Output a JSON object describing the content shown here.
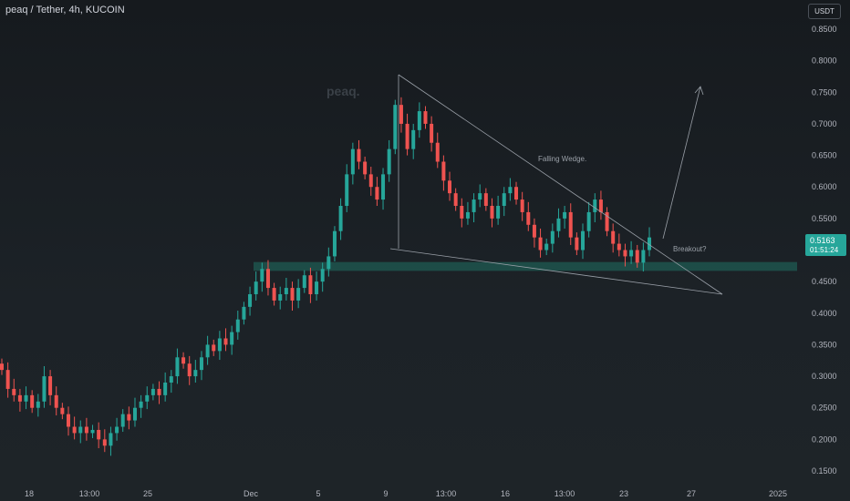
{
  "header": {
    "title": "peaq / Tether, 4h, KUCOIN",
    "unit_badge": "USDT"
  },
  "watermark": "peaq.",
  "annotations": {
    "pattern_label": "Falling Wedge.",
    "breakout_label": "Breakout?"
  },
  "price_tag": {
    "price": "0.5163",
    "countdown": "01:51:24",
    "color": "#26a69a"
  },
  "colors": {
    "up": "#26a69a",
    "down": "#ef5350",
    "zone": "#1f5b53",
    "lines": "#9aa0a8"
  },
  "chart_data": {
    "type": "candlestick",
    "y_axis": {
      "ticks": [
        "0.8500",
        "0.8000",
        "0.7500",
        "0.7000",
        "0.6500",
        "0.6000",
        "0.5500",
        "0.4500",
        "0.4000",
        "0.3500",
        "0.3000",
        "0.2500",
        "0.2000",
        "0.1500"
      ],
      "range": [
        0.13,
        0.86
      ]
    },
    "x_axis": {
      "ticks": [
        "18",
        "13:00",
        "25",
        "Dec",
        "5",
        "9",
        "13:00",
        "16",
        "13:00",
        "23",
        "27",
        "2025"
      ]
    },
    "support_zone": [
      0.467,
      0.481
    ],
    "wedge": {
      "upper": [
        [
          "2024-12-09",
          0.78
        ],
        [
          "2024-12-28",
          0.43
        ]
      ],
      "lower": [
        [
          "2024-12-09",
          0.51
        ],
        [
          "2024-12-28",
          0.43
        ]
      ]
    },
    "projection": [
      [
        "2024-12-24",
        0.52
      ],
      [
        "2024-12-25",
        0.76
      ]
    ],
    "price_path": [
      [
        0.32,
        0.31
      ],
      [
        0.31,
        0.28
      ],
      [
        0.28,
        0.27
      ],
      [
        0.27,
        0.26
      ],
      [
        0.26,
        0.27
      ],
      [
        0.27,
        0.25
      ],
      [
        0.25,
        0.26
      ],
      [
        0.26,
        0.3
      ],
      [
        0.3,
        0.27
      ],
      [
        0.27,
        0.25
      ],
      [
        0.25,
        0.24
      ],
      [
        0.24,
        0.22
      ],
      [
        0.22,
        0.21
      ],
      [
        0.21,
        0.22
      ],
      [
        0.22,
        0.21
      ],
      [
        0.21,
        0.215
      ],
      [
        0.215,
        0.2
      ],
      [
        0.2,
        0.19
      ],
      [
        0.19,
        0.21
      ],
      [
        0.21,
        0.22
      ],
      [
        0.22,
        0.24
      ],
      [
        0.24,
        0.23
      ],
      [
        0.23,
        0.25
      ],
      [
        0.25,
        0.26
      ],
      [
        0.26,
        0.27
      ],
      [
        0.27,
        0.28
      ],
      [
        0.28,
        0.27
      ],
      [
        0.27,
        0.29
      ],
      [
        0.29,
        0.3
      ],
      [
        0.3,
        0.33
      ],
      [
        0.33,
        0.32
      ],
      [
        0.32,
        0.3
      ],
      [
        0.3,
        0.31
      ],
      [
        0.31,
        0.33
      ],
      [
        0.33,
        0.35
      ],
      [
        0.35,
        0.34
      ],
      [
        0.34,
        0.36
      ],
      [
        0.36,
        0.35
      ],
      [
        0.35,
        0.37
      ],
      [
        0.37,
        0.39
      ],
      [
        0.39,
        0.41
      ],
      [
        0.41,
        0.43
      ],
      [
        0.43,
        0.45
      ],
      [
        0.45,
        0.47
      ],
      [
        0.47,
        0.44
      ],
      [
        0.44,
        0.42
      ],
      [
        0.42,
        0.43
      ],
      [
        0.43,
        0.44
      ],
      [
        0.44,
        0.42
      ],
      [
        0.42,
        0.44
      ],
      [
        0.44,
        0.46
      ],
      [
        0.46,
        0.43
      ],
      [
        0.43,
        0.45
      ],
      [
        0.45,
        0.47
      ],
      [
        0.47,
        0.49
      ],
      [
        0.49,
        0.53
      ],
      [
        0.53,
        0.57
      ],
      [
        0.57,
        0.62
      ],
      [
        0.62,
        0.66
      ],
      [
        0.66,
        0.64
      ],
      [
        0.64,
        0.62
      ],
      [
        0.62,
        0.6
      ],
      [
        0.6,
        0.58
      ],
      [
        0.58,
        0.62
      ],
      [
        0.62,
        0.66
      ],
      [
        0.66,
        0.73
      ],
      [
        0.73,
        0.7
      ],
      [
        0.7,
        0.66
      ],
      [
        0.66,
        0.69
      ],
      [
        0.69,
        0.72
      ],
      [
        0.72,
        0.7
      ],
      [
        0.7,
        0.67
      ],
      [
        0.67,
        0.64
      ],
      [
        0.64,
        0.61
      ],
      [
        0.61,
        0.59
      ],
      [
        0.59,
        0.57
      ],
      [
        0.57,
        0.55
      ],
      [
        0.55,
        0.56
      ],
      [
        0.56,
        0.58
      ],
      [
        0.58,
        0.59
      ],
      [
        0.59,
        0.57
      ],
      [
        0.57,
        0.55
      ],
      [
        0.55,
        0.57
      ],
      [
        0.57,
        0.59
      ],
      [
        0.59,
        0.6
      ],
      [
        0.6,
        0.58
      ],
      [
        0.58,
        0.56
      ],
      [
        0.56,
        0.54
      ],
      [
        0.54,
        0.52
      ],
      [
        0.52,
        0.5
      ],
      [
        0.5,
        0.51
      ],
      [
        0.51,
        0.53
      ],
      [
        0.53,
        0.55
      ],
      [
        0.55,
        0.56
      ],
      [
        0.56,
        0.52
      ],
      [
        0.52,
        0.5
      ],
      [
        0.5,
        0.53
      ],
      [
        0.53,
        0.56
      ],
      [
        0.56,
        0.58
      ],
      [
        0.58,
        0.56
      ],
      [
        0.56,
        0.53
      ],
      [
        0.53,
        0.51
      ],
      [
        0.51,
        0.5
      ],
      [
        0.5,
        0.49
      ],
      [
        0.49,
        0.5
      ],
      [
        0.5,
        0.48
      ],
      [
        0.48,
        0.5
      ],
      [
        0.5,
        0.52
      ]
    ]
  }
}
